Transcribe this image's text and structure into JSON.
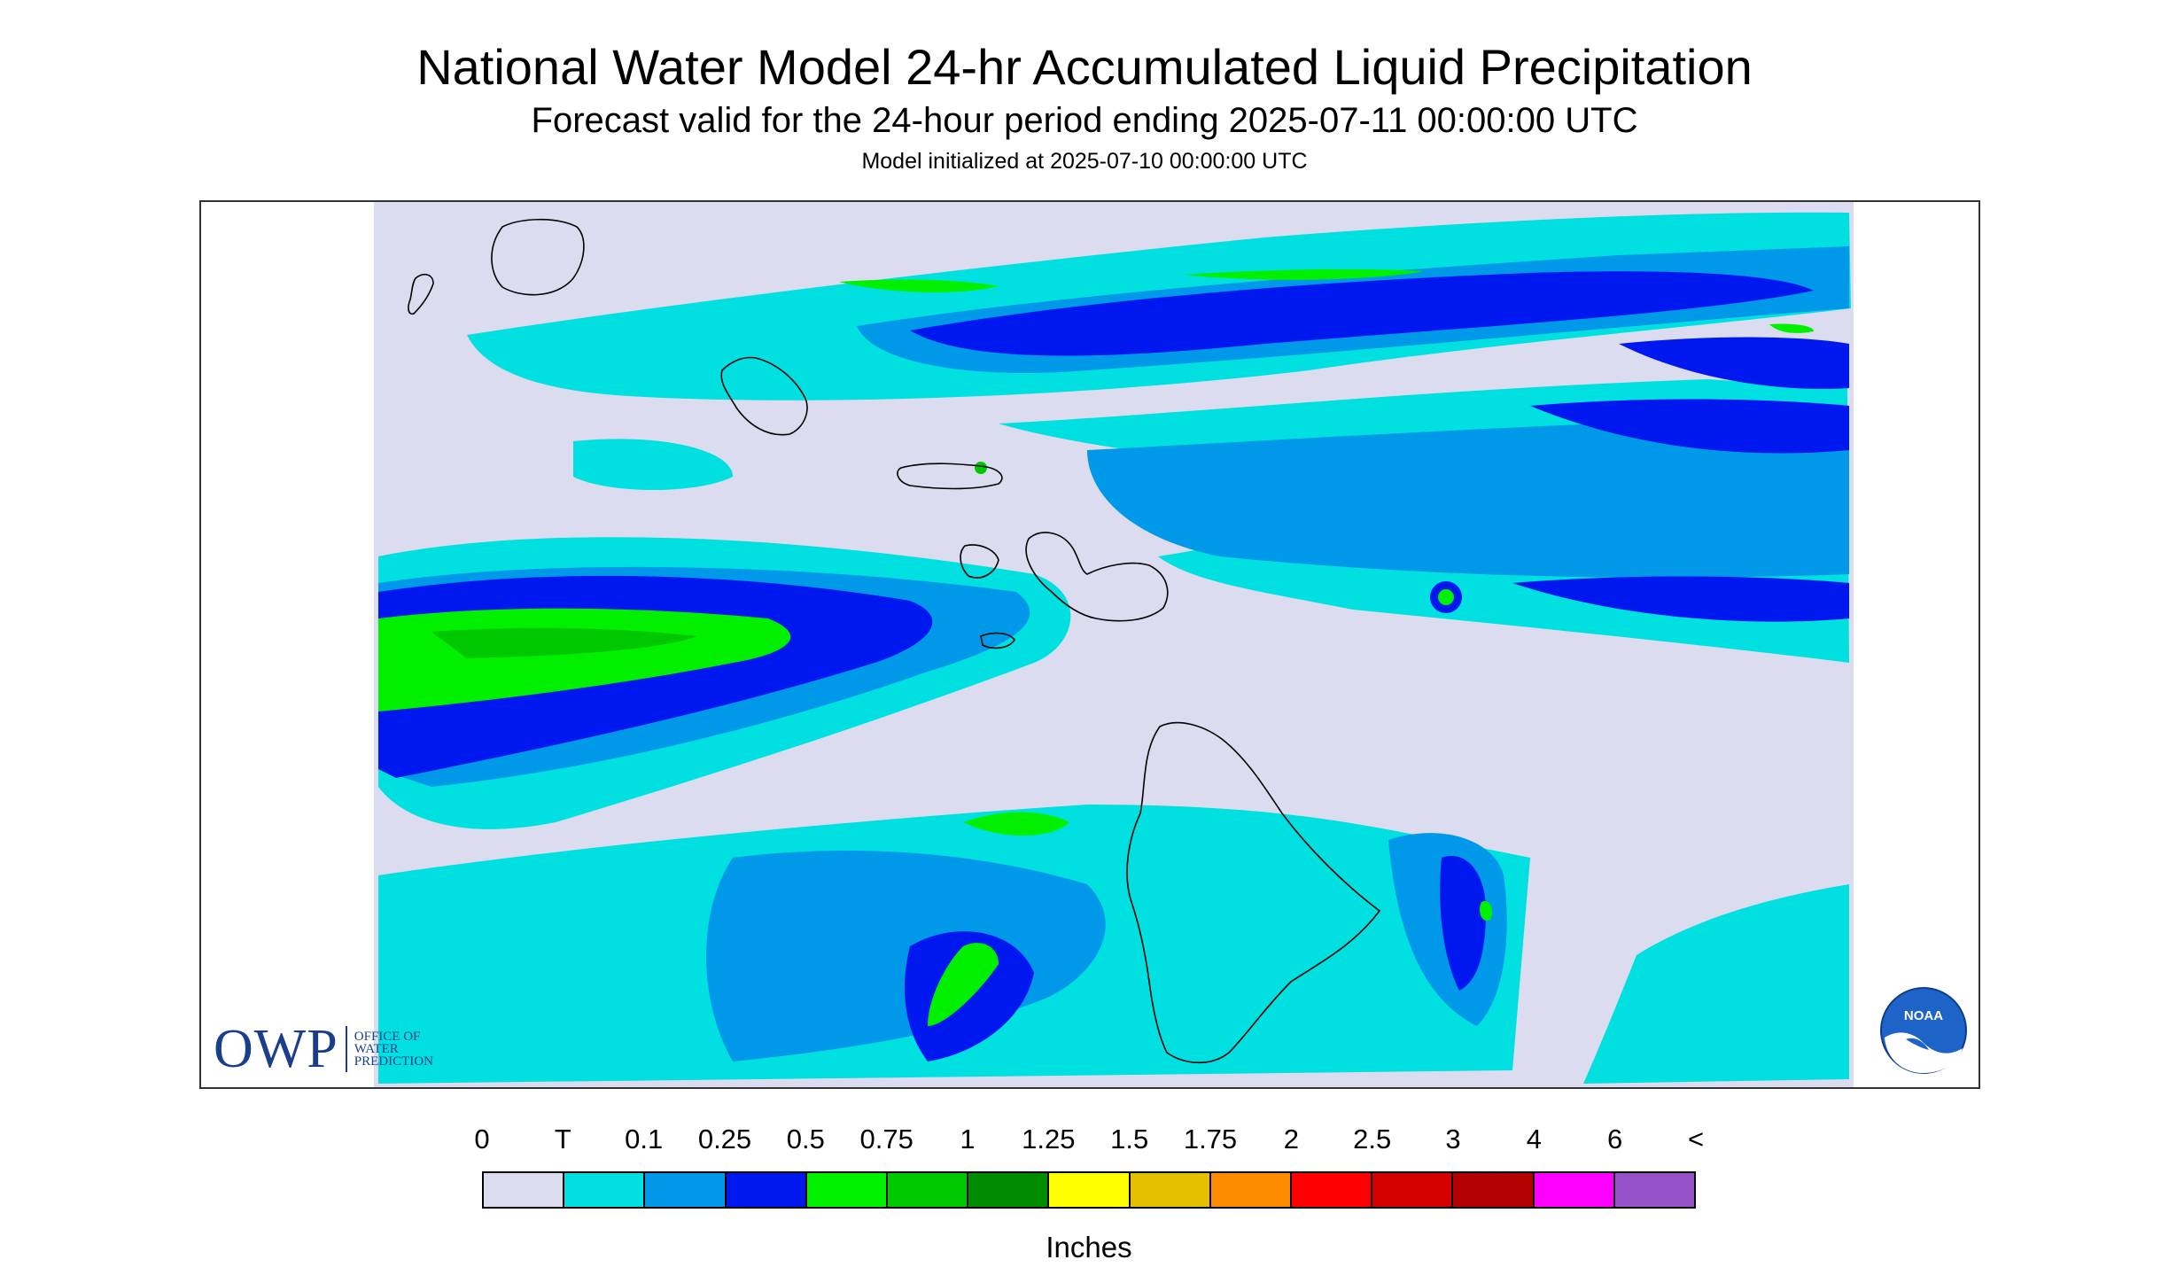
{
  "header": {
    "title": "National Water Model 24-hr Accumulated Liquid Precipitation",
    "subtitle": "Forecast valid for the 24-hour period ending 2025-07-11 00:00:00 UTC",
    "init": "Model initialized at 2025-07-10 00:00:00 UTC"
  },
  "logos": {
    "owp_letters": "OWP",
    "owp_words": [
      "Office of",
      "Water",
      "Prediction"
    ],
    "noaa": "NOAA"
  },
  "legend": {
    "ticks": [
      "0",
      "T",
      "0.1",
      "0.25",
      "0.5",
      "0.75",
      "1",
      "1.25",
      "1.5",
      "1.75",
      "2",
      "2.5",
      "3",
      "4",
      "6",
      "<"
    ],
    "colors": [
      "#dcdcf0",
      "#00e0e0",
      "#0098e8",
      "#0018f0",
      "#00f000",
      "#00c800",
      "#008c00",
      "#ffff00",
      "#e6c000",
      "#ff8c00",
      "#ff0000",
      "#d40000",
      "#b40000",
      "#ff00ff",
      "#9650c8"
    ],
    "units": "Inches"
  },
  "map": {
    "background_color": "#dcdcf0",
    "coastline_color": "#000000",
    "precip_layers": {
      "trace": "#00e0e0",
      "light": "#0098e8",
      "moderate": "#0018f0",
      "heavy": "#00f000",
      "heavier": "#00c800"
    }
  }
}
